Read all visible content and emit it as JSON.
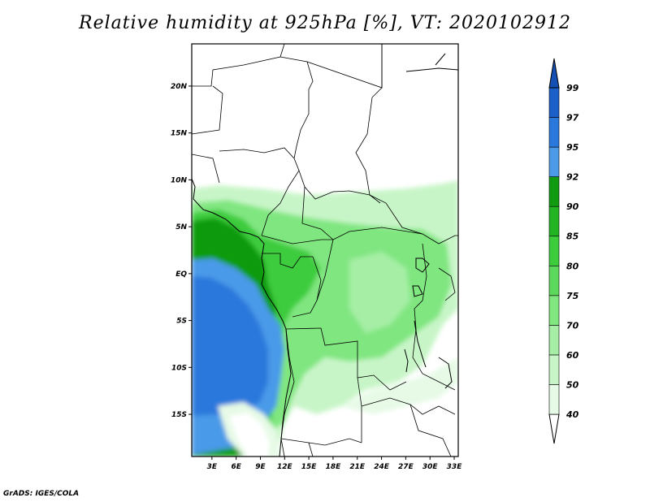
{
  "title": "Relative humidity at 925hPa [%], VT: 2020102912",
  "credit": "GrADS: IGES/COLA",
  "map": {
    "lat_range": [
      -19.5,
      24.5
    ],
    "lon_range": [
      0.5,
      33.5
    ],
    "lat_ticks": [
      {
        "value": 20,
        "label": "20N"
      },
      {
        "value": 15,
        "label": "15N"
      },
      {
        "value": 10,
        "label": "10N"
      },
      {
        "value": 5,
        "label": "5N"
      },
      {
        "value": 0,
        "label": "EQ"
      },
      {
        "value": -5,
        "label": "5S"
      },
      {
        "value": -10,
        "label": "10S"
      },
      {
        "value": -15,
        "label": "15S"
      }
    ],
    "lon_ticks": [
      {
        "value": 3,
        "label": "3E"
      },
      {
        "value": 6,
        "label": "6E"
      },
      {
        "value": 9,
        "label": "9E"
      },
      {
        "value": 12,
        "label": "12E"
      },
      {
        "value": 15,
        "label": "15E"
      },
      {
        "value": 18,
        "label": "18E"
      },
      {
        "value": 21,
        "label": "21E"
      },
      {
        "value": 24,
        "label": "24E"
      },
      {
        "value": 27,
        "label": "27E"
      },
      {
        "value": 30,
        "label": "30E"
      },
      {
        "value": 33,
        "label": "33E"
      }
    ]
  },
  "colorbar": {
    "levels": [
      "40",
      "50",
      "60",
      "70",
      "75",
      "80",
      "85",
      "90",
      "92",
      "95",
      "97",
      "99"
    ],
    "colors": [
      "#ffffff",
      "#e6fae6",
      "#c8f5c8",
      "#a6eea6",
      "#80e680",
      "#5cd85c",
      "#3ccc3c",
      "#22b422",
      "#109b10",
      "#4a9ae8",
      "#2a78dc",
      "#1a60c8",
      "#1450b4"
    ]
  }
}
